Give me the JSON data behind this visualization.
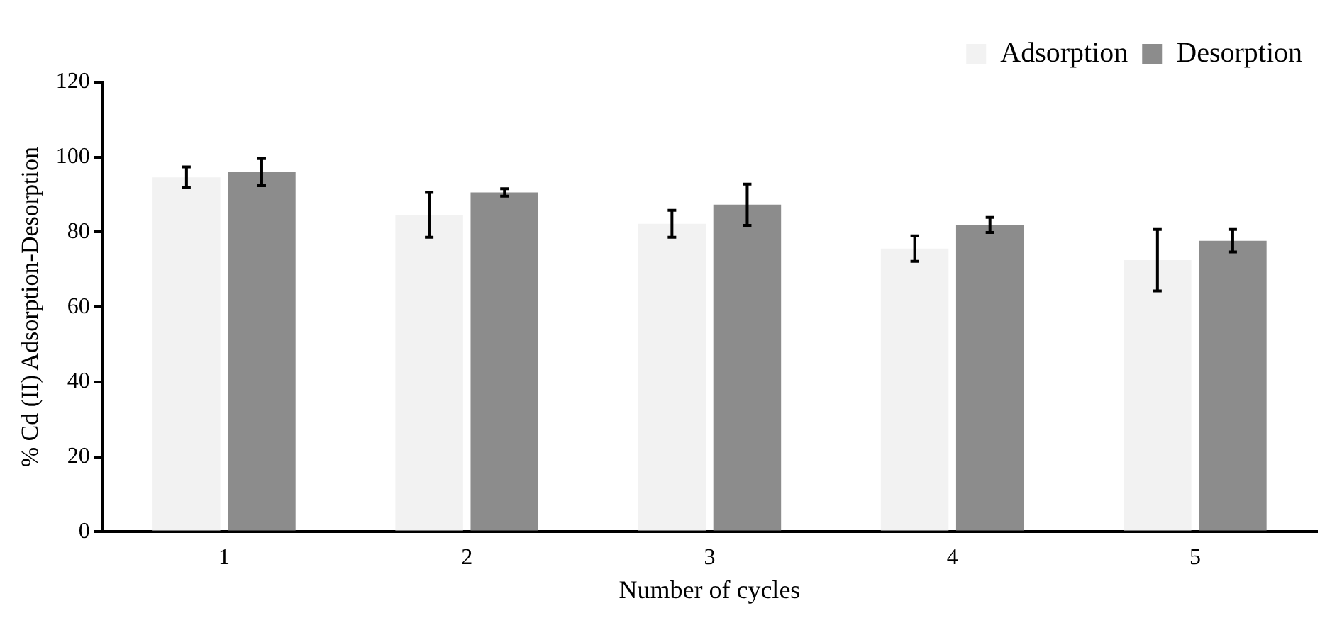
{
  "chart_data": {
    "type": "bar",
    "xlabel": "Number of cycles",
    "ylabel": "% Cd (II) Adsorption-Desorption",
    "categories": [
      "1",
      "2",
      "3",
      "4",
      "5"
    ],
    "series": [
      {
        "name": "Adsorption",
        "color": "#f2f2f2",
        "values": [
          94.6,
          84.6,
          82.2,
          75.6,
          72.5
        ],
        "errors": [
          2.8,
          6,
          3.6,
          3.4,
          8.2
        ]
      },
      {
        "name": "Desorption",
        "color": "#8c8c8c",
        "values": [
          96,
          90.6,
          87.3,
          81.9,
          77.7
        ],
        "errors": [
          3.6,
          1,
          5.5,
          2,
          3
        ]
      }
    ],
    "ylim": [
      0,
      120
    ],
    "yticks": [
      0,
      20,
      40,
      60,
      80,
      100,
      120
    ],
    "grid": false,
    "legend": "top right"
  }
}
